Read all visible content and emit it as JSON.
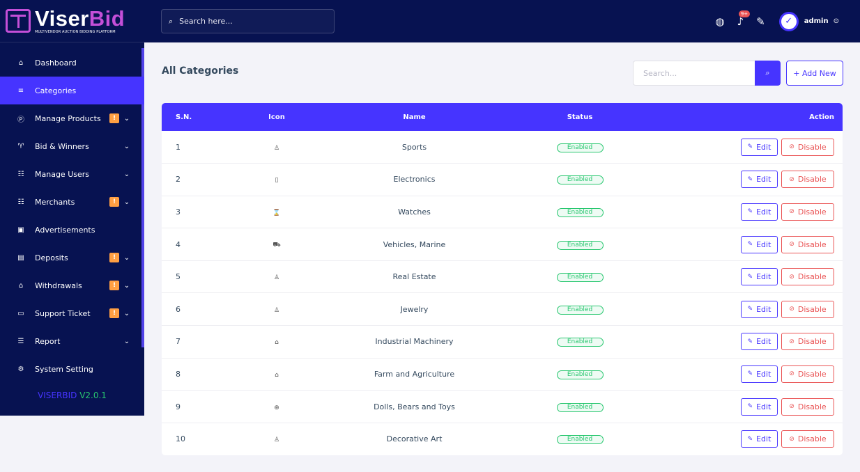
{
  "brand": {
    "part1": "Viser",
    "part2": "Bid",
    "tagline": "MULTIVENDOR AUCTION BIDDING PLATFORM"
  },
  "sidebar": {
    "items": [
      {
        "label": "Dashboard",
        "icon": "⌂",
        "active": false,
        "badge": false,
        "caret": false
      },
      {
        "label": "Categories",
        "icon": "≡",
        "active": true,
        "badge": false,
        "caret": false
      },
      {
        "label": "Manage Products",
        "icon": "Ⓟ",
        "active": false,
        "badge": true,
        "caret": true
      },
      {
        "label": "Bid & Winners",
        "icon": "♈",
        "active": false,
        "badge": false,
        "caret": true
      },
      {
        "label": "Manage Users",
        "icon": "☷",
        "active": false,
        "badge": false,
        "caret": true
      },
      {
        "label": "Merchants",
        "icon": "☷",
        "active": false,
        "badge": true,
        "caret": true
      },
      {
        "label": "Advertisements",
        "icon": "▣",
        "active": false,
        "badge": false,
        "caret": false
      },
      {
        "label": "Deposits",
        "icon": "▤",
        "active": false,
        "badge": true,
        "caret": true
      },
      {
        "label": "Withdrawals",
        "icon": "⌂",
        "active": false,
        "badge": true,
        "caret": true
      },
      {
        "label": "Support Ticket",
        "icon": "▭",
        "active": false,
        "badge": true,
        "caret": true
      },
      {
        "label": "Report",
        "icon": "☰",
        "active": false,
        "badge": false,
        "caret": true
      },
      {
        "label": "System Setting",
        "icon": "⚙",
        "active": false,
        "badge": false,
        "caret": false
      }
    ],
    "badge_symbol": "!",
    "caret_symbol": "⌄",
    "version_name": "VISERBID",
    "version_number": "V2.0.1"
  },
  "topbar": {
    "search_placeholder": "Search here...",
    "notification_count": "9+",
    "admin_name": "admin"
  },
  "main": {
    "title": "All Categories",
    "search_placeholder": "Search...",
    "add_new_label": "+ Add New",
    "table": {
      "headers": {
        "sn": "S.N.",
        "icon": "Icon",
        "name": "Name",
        "status": "Status",
        "action": "Action"
      },
      "edit_label": "Edit",
      "disable_label": "Disable",
      "rows": [
        {
          "sn": "1",
          "icon": "♙",
          "name": "Sports",
          "status": "Enabled"
        },
        {
          "sn": "2",
          "icon": "▯",
          "name": "Electronics",
          "status": "Enabled"
        },
        {
          "sn": "3",
          "icon": "⌛",
          "name": "Watches",
          "status": "Enabled"
        },
        {
          "sn": "4",
          "icon": "⛟",
          "name": "Vehicles, Marine",
          "status": "Enabled"
        },
        {
          "sn": "5",
          "icon": "♙",
          "name": "Real Estate",
          "status": "Enabled"
        },
        {
          "sn": "6",
          "icon": "♙",
          "name": "Jewelry",
          "status": "Enabled"
        },
        {
          "sn": "7",
          "icon": "⌂",
          "name": "Industrial Machinery",
          "status": "Enabled"
        },
        {
          "sn": "8",
          "icon": "⌂",
          "name": "Farm and Agriculture",
          "status": "Enabled"
        },
        {
          "sn": "9",
          "icon": "⊕",
          "name": "Dolls, Bears and Toys",
          "status": "Enabled"
        },
        {
          "sn": "10",
          "icon": "♙",
          "name": "Decorative Art",
          "status": "Enabled"
        }
      ]
    }
  },
  "colors": {
    "sidebar_bg": "#071251",
    "primary": "#4634ff",
    "success": "#28c76f",
    "danger": "#ea5455",
    "warning": "#ff9f43"
  }
}
